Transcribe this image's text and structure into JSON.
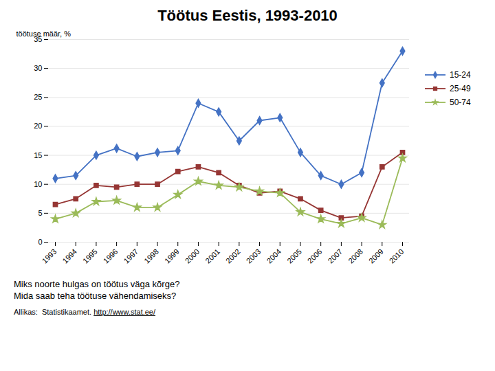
{
  "chart_data": {
    "type": "line",
    "title": "Töötus Eestis, 1993-2010",
    "y_label": "töötuse määr, %",
    "x": [
      1993,
      1994,
      1995,
      1996,
      1997,
      1998,
      1999,
      2000,
      2001,
      2002,
      2003,
      2004,
      2005,
      2006,
      2007,
      2008,
      2009,
      2010
    ],
    "series": [
      {
        "name": "15-24",
        "color": "#4472C4",
        "marker": "diamond",
        "values": [
          11.0,
          11.5,
          15.0,
          16.2,
          14.8,
          15.5,
          15.8,
          24.0,
          22.5,
          17.5,
          21.0,
          21.5,
          15.5,
          11.5,
          10.0,
          12.0,
          27.5,
          33.0
        ]
      },
      {
        "name": "25-49",
        "color": "#963634",
        "marker": "square",
        "values": [
          6.5,
          7.5,
          9.8,
          9.5,
          10.0,
          10.0,
          12.2,
          13.0,
          12.0,
          9.8,
          8.5,
          8.8,
          7.5,
          5.5,
          4.2,
          4.5,
          13.0,
          15.5
        ]
      },
      {
        "name": "50-74",
        "color": "#9BBB59",
        "marker": "star",
        "values": [
          4.0,
          5.0,
          7.0,
          7.2,
          6.0,
          6.0,
          8.2,
          10.5,
          9.8,
          9.5,
          8.8,
          8.5,
          5.2,
          4.0,
          3.2,
          4.2,
          3.0,
          14.5
        ]
      }
    ],
    "xlim": [
      1993,
      2010
    ],
    "xticks": [
      1993,
      1994,
      1995,
      1996,
      1997,
      1998,
      1999,
      2000,
      2001,
      2002,
      2003,
      2004,
      2005,
      2006,
      2007,
      2008,
      2009,
      2010
    ],
    "ylim": [
      0,
      35
    ],
    "yticks": [
      0,
      5,
      10,
      15,
      20,
      25,
      30,
      35
    ],
    "grid": true,
    "legend": "right",
    "annotations": [
      "Miks noorte hulgas on töötus väga kõrge?",
      "Mida saab teha töötuse vähendamiseks?"
    ],
    "source": "Allikas:  Statistikaamet. ",
    "source_link": "http://www.stat.ee/"
  }
}
